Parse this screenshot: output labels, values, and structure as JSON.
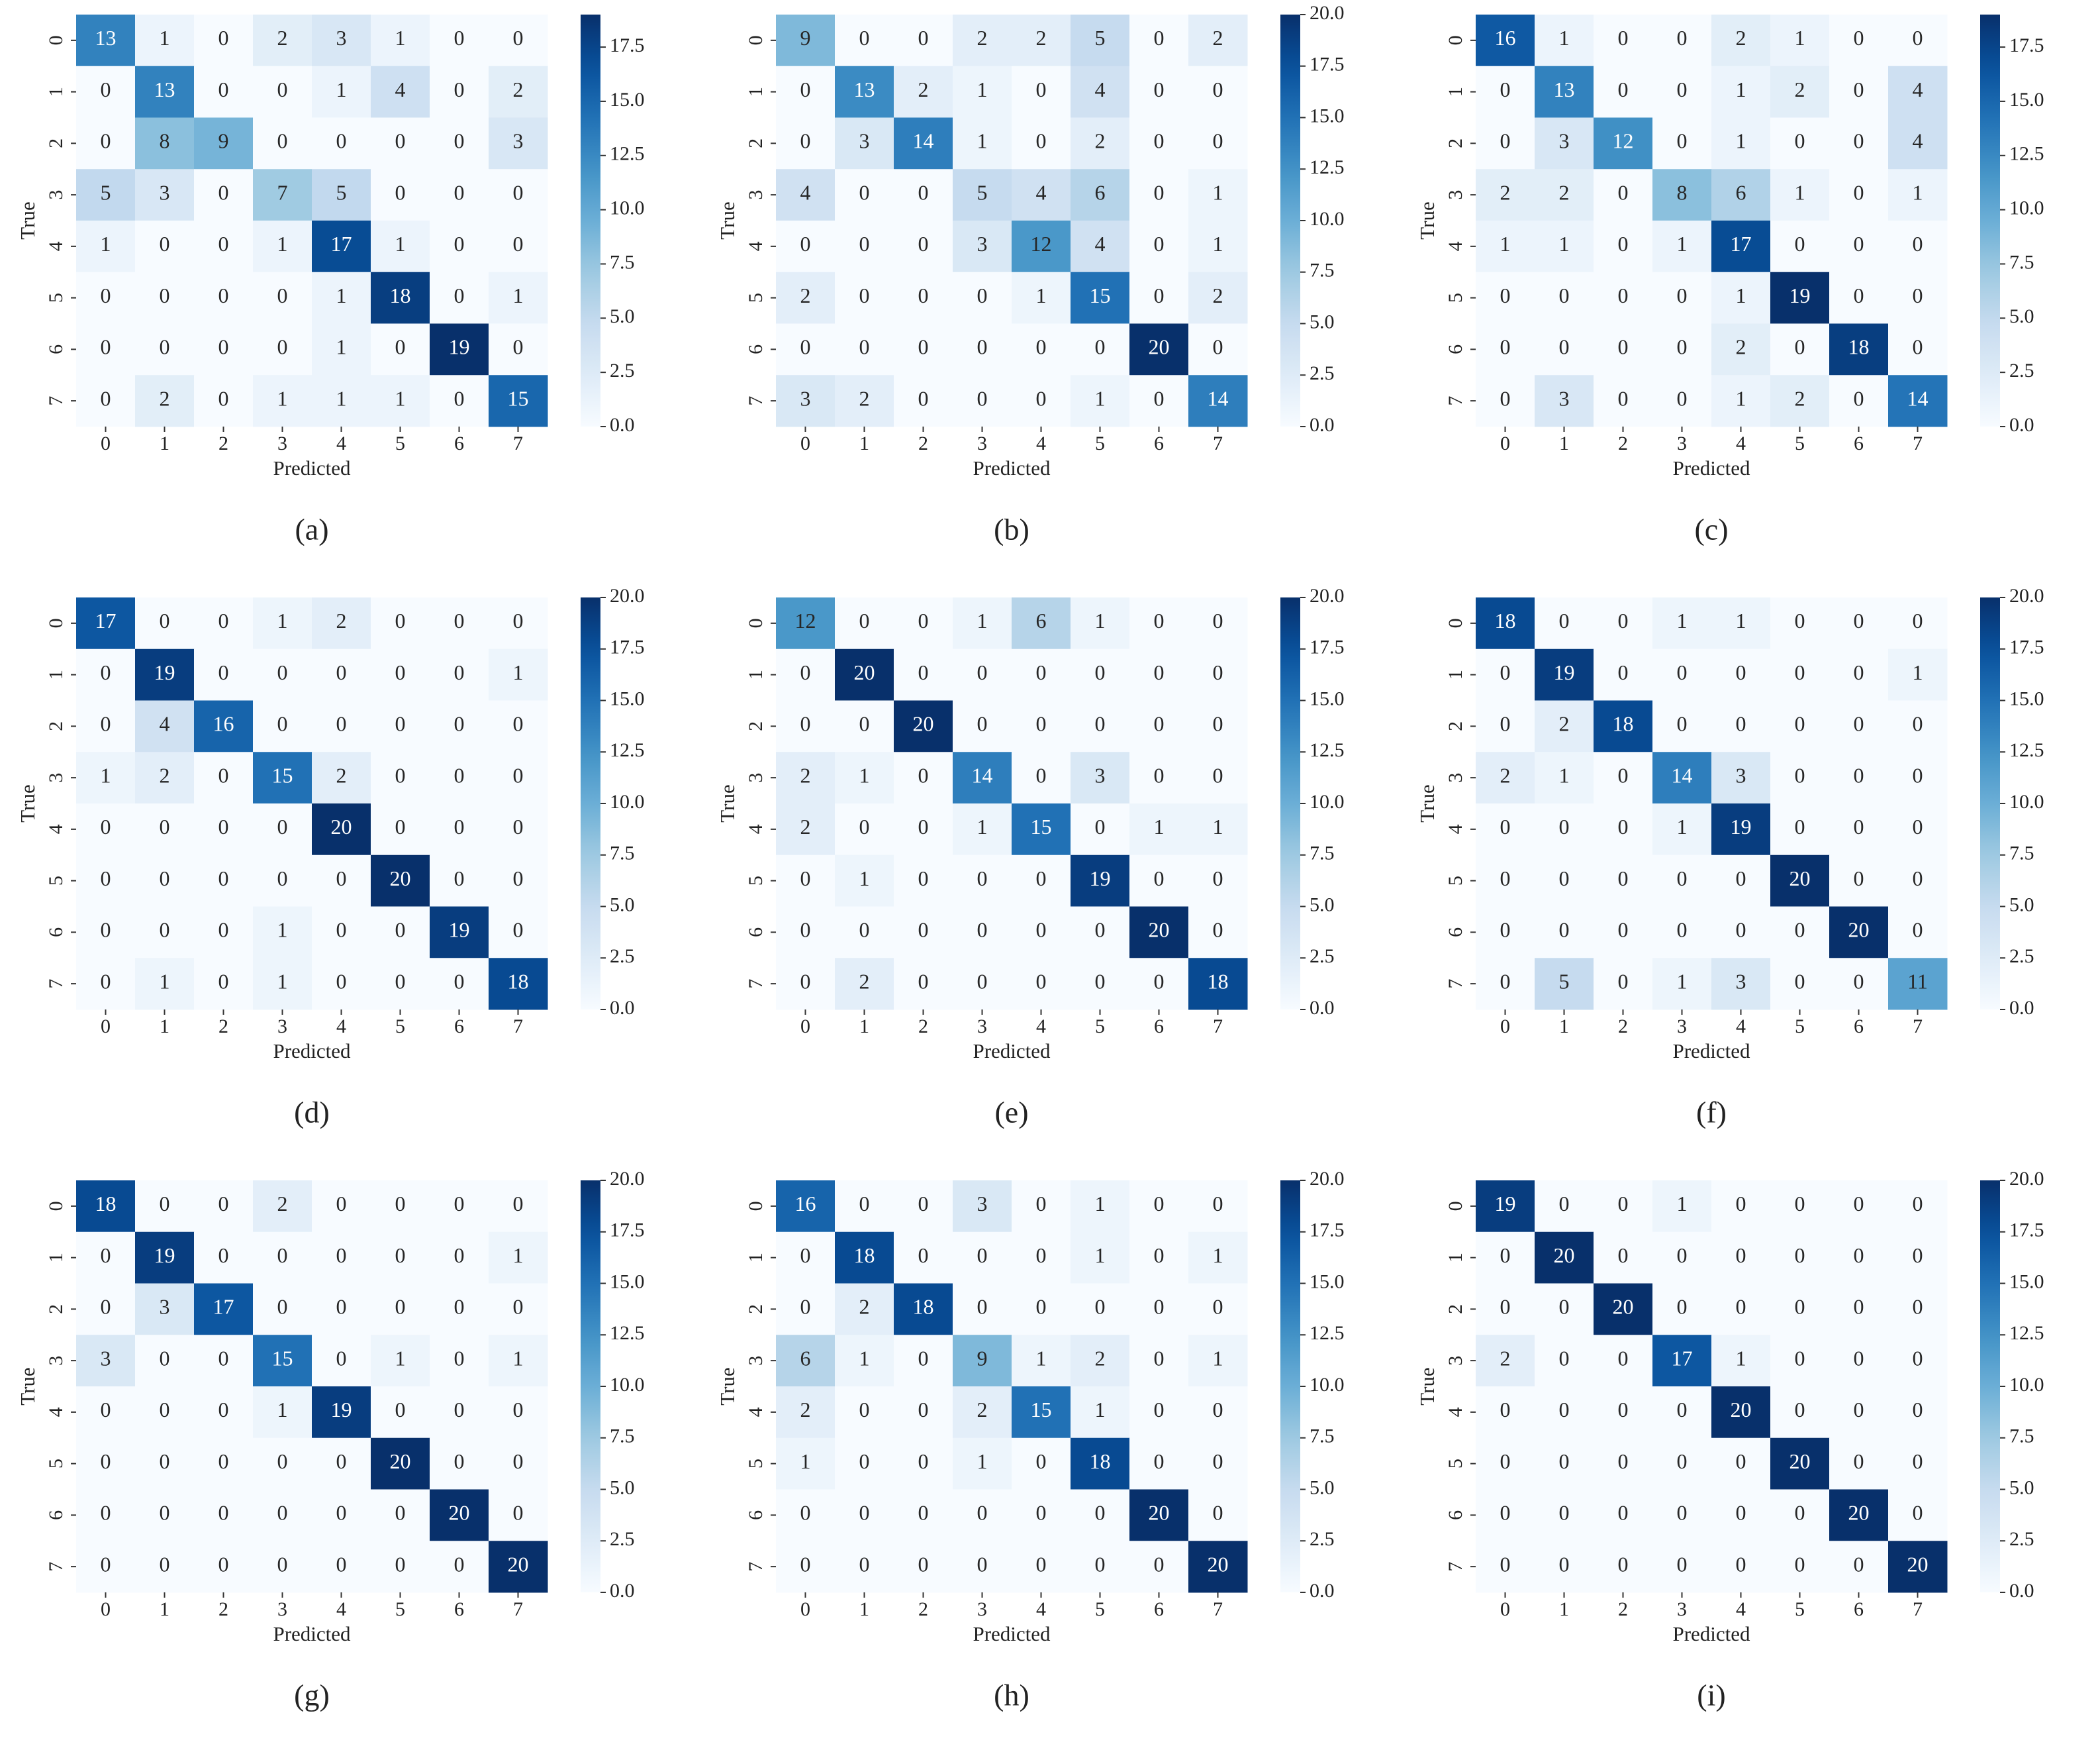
{
  "chart_data": [
    {
      "type": "heatmap",
      "title": "(a)",
      "xlabel": "Predicted",
      "ylabel": "True",
      "categories": [
        "0",
        "1",
        "2",
        "3",
        "4",
        "5",
        "6",
        "7"
      ],
      "colormap": "Blues",
      "zlim": [
        0,
        19
      ],
      "zticks": [
        {
          "value": 0,
          "label": "0.0"
        },
        {
          "value": 2.5,
          "label": "2.5"
        },
        {
          "value": 5,
          "label": "5.0"
        },
        {
          "value": 7.5,
          "label": "7.5"
        },
        {
          "value": 10,
          "label": "10.0"
        },
        {
          "value": 12.5,
          "label": "12.5"
        },
        {
          "value": 15,
          "label": "15.0"
        },
        {
          "value": 17.5,
          "label": "17.5"
        }
      ],
      "values": [
        [
          13,
          1,
          0,
          2,
          3,
          1,
          0,
          0
        ],
        [
          0,
          13,
          0,
          0,
          1,
          4,
          0,
          2
        ],
        [
          0,
          8,
          9,
          0,
          0,
          0,
          0,
          3
        ],
        [
          5,
          3,
          0,
          7,
          5,
          0,
          0,
          0
        ],
        [
          1,
          0,
          0,
          1,
          17,
          1,
          0,
          0
        ],
        [
          0,
          0,
          0,
          0,
          1,
          18,
          0,
          1
        ],
        [
          0,
          0,
          0,
          0,
          1,
          0,
          19,
          0
        ],
        [
          0,
          2,
          0,
          1,
          1,
          1,
          0,
          15
        ]
      ]
    },
    {
      "type": "heatmap",
      "title": "(b)",
      "xlabel": "Predicted",
      "ylabel": "True",
      "categories": [
        "0",
        "1",
        "2",
        "3",
        "4",
        "5",
        "6",
        "7"
      ],
      "colormap": "Blues",
      "zlim": [
        0,
        20
      ],
      "zticks": [
        {
          "value": 0,
          "label": "0.0"
        },
        {
          "value": 2.5,
          "label": "2.5"
        },
        {
          "value": 5,
          "label": "5.0"
        },
        {
          "value": 7.5,
          "label": "7.5"
        },
        {
          "value": 10,
          "label": "10.0"
        },
        {
          "value": 12.5,
          "label": "12.5"
        },
        {
          "value": 15,
          "label": "15.0"
        },
        {
          "value": 17.5,
          "label": "17.5"
        },
        {
          "value": 20,
          "label": "20.0"
        }
      ],
      "values": [
        [
          9,
          0,
          0,
          2,
          2,
          5,
          0,
          2
        ],
        [
          0,
          13,
          2,
          1,
          0,
          4,
          0,
          0
        ],
        [
          0,
          3,
          14,
          1,
          0,
          2,
          0,
          0
        ],
        [
          4,
          0,
          0,
          5,
          4,
          6,
          0,
          1
        ],
        [
          0,
          0,
          0,
          3,
          12,
          4,
          0,
          1
        ],
        [
          2,
          0,
          0,
          0,
          1,
          15,
          0,
          2
        ],
        [
          0,
          0,
          0,
          0,
          0,
          0,
          20,
          0
        ],
        [
          3,
          2,
          0,
          0,
          0,
          1,
          0,
          14
        ]
      ]
    },
    {
      "type": "heatmap",
      "title": "(c)",
      "xlabel": "Predicted",
      "ylabel": "True",
      "categories": [
        "0",
        "1",
        "2",
        "3",
        "4",
        "5",
        "6",
        "7"
      ],
      "colormap": "Blues",
      "zlim": [
        0,
        19
      ],
      "zticks": [
        {
          "value": 0,
          "label": "0.0"
        },
        {
          "value": 2.5,
          "label": "2.5"
        },
        {
          "value": 5,
          "label": "5.0"
        },
        {
          "value": 7.5,
          "label": "7.5"
        },
        {
          "value": 10,
          "label": "10.0"
        },
        {
          "value": 12.5,
          "label": "12.5"
        },
        {
          "value": 15,
          "label": "15.0"
        },
        {
          "value": 17.5,
          "label": "17.5"
        }
      ],
      "values": [
        [
          16,
          1,
          0,
          0,
          2,
          1,
          0,
          0
        ],
        [
          0,
          13,
          0,
          0,
          1,
          2,
          0,
          4
        ],
        [
          0,
          3,
          12,
          0,
          1,
          0,
          0,
          4
        ],
        [
          2,
          2,
          0,
          8,
          6,
          1,
          0,
          1
        ],
        [
          1,
          1,
          0,
          1,
          17,
          0,
          0,
          0
        ],
        [
          0,
          0,
          0,
          0,
          1,
          19,
          0,
          0
        ],
        [
          0,
          0,
          0,
          0,
          2,
          0,
          18,
          0
        ],
        [
          0,
          3,
          0,
          0,
          1,
          2,
          0,
          14
        ]
      ]
    },
    {
      "type": "heatmap",
      "title": "(d)",
      "xlabel": "Predicted",
      "ylabel": "True",
      "categories": [
        "0",
        "1",
        "2",
        "3",
        "4",
        "5",
        "6",
        "7"
      ],
      "colormap": "Blues",
      "zlim": [
        0,
        20
      ],
      "zticks": [
        {
          "value": 0,
          "label": "0.0"
        },
        {
          "value": 2.5,
          "label": "2.5"
        },
        {
          "value": 5,
          "label": "5.0"
        },
        {
          "value": 7.5,
          "label": "7.5"
        },
        {
          "value": 10,
          "label": "10.0"
        },
        {
          "value": 12.5,
          "label": "12.5"
        },
        {
          "value": 15,
          "label": "15.0"
        },
        {
          "value": 17.5,
          "label": "17.5"
        },
        {
          "value": 20,
          "label": "20.0"
        }
      ],
      "values": [
        [
          17,
          0,
          0,
          1,
          2,
          0,
          0,
          0
        ],
        [
          0,
          19,
          0,
          0,
          0,
          0,
          0,
          1
        ],
        [
          0,
          4,
          16,
          0,
          0,
          0,
          0,
          0
        ],
        [
          1,
          2,
          0,
          15,
          2,
          0,
          0,
          0
        ],
        [
          0,
          0,
          0,
          0,
          20,
          0,
          0,
          0
        ],
        [
          0,
          0,
          0,
          0,
          0,
          20,
          0,
          0
        ],
        [
          0,
          0,
          0,
          1,
          0,
          0,
          19,
          0
        ],
        [
          0,
          1,
          0,
          1,
          0,
          0,
          0,
          18
        ]
      ]
    },
    {
      "type": "heatmap",
      "title": "(e)",
      "xlabel": "Predicted",
      "ylabel": "True",
      "categories": [
        "0",
        "1",
        "2",
        "3",
        "4",
        "5",
        "6",
        "7"
      ],
      "colormap": "Blues",
      "zlim": [
        0,
        20
      ],
      "zticks": [
        {
          "value": 0,
          "label": "0.0"
        },
        {
          "value": 2.5,
          "label": "2.5"
        },
        {
          "value": 5,
          "label": "5.0"
        },
        {
          "value": 7.5,
          "label": "7.5"
        },
        {
          "value": 10,
          "label": "10.0"
        },
        {
          "value": 12.5,
          "label": "12.5"
        },
        {
          "value": 15,
          "label": "15.0"
        },
        {
          "value": 17.5,
          "label": "17.5"
        },
        {
          "value": 20,
          "label": "20.0"
        }
      ],
      "values": [
        [
          12,
          0,
          0,
          1,
          6,
          1,
          0,
          0
        ],
        [
          0,
          20,
          0,
          0,
          0,
          0,
          0,
          0
        ],
        [
          0,
          0,
          20,
          0,
          0,
          0,
          0,
          0
        ],
        [
          2,
          1,
          0,
          14,
          0,
          3,
          0,
          0
        ],
        [
          2,
          0,
          0,
          1,
          15,
          0,
          1,
          1
        ],
        [
          0,
          1,
          0,
          0,
          0,
          19,
          0,
          0
        ],
        [
          0,
          0,
          0,
          0,
          0,
          0,
          20,
          0
        ],
        [
          0,
          2,
          0,
          0,
          0,
          0,
          0,
          18
        ]
      ]
    },
    {
      "type": "heatmap",
      "title": "(f)",
      "xlabel": "Predicted",
      "ylabel": "True",
      "categories": [
        "0",
        "1",
        "2",
        "3",
        "4",
        "5",
        "6",
        "7"
      ],
      "colormap": "Blues",
      "zlim": [
        0,
        20
      ],
      "zticks": [
        {
          "value": 0,
          "label": "0.0"
        },
        {
          "value": 2.5,
          "label": "2.5"
        },
        {
          "value": 5,
          "label": "5.0"
        },
        {
          "value": 7.5,
          "label": "7.5"
        },
        {
          "value": 10,
          "label": "10.0"
        },
        {
          "value": 12.5,
          "label": "12.5"
        },
        {
          "value": 15,
          "label": "15.0"
        },
        {
          "value": 17.5,
          "label": "17.5"
        },
        {
          "value": 20,
          "label": "20.0"
        }
      ],
      "values": [
        [
          18,
          0,
          0,
          1,
          1,
          0,
          0,
          0
        ],
        [
          0,
          19,
          0,
          0,
          0,
          0,
          0,
          1
        ],
        [
          0,
          2,
          18,
          0,
          0,
          0,
          0,
          0
        ],
        [
          2,
          1,
          0,
          14,
          3,
          0,
          0,
          0
        ],
        [
          0,
          0,
          0,
          1,
          19,
          0,
          0,
          0
        ],
        [
          0,
          0,
          0,
          0,
          0,
          20,
          0,
          0
        ],
        [
          0,
          0,
          0,
          0,
          0,
          0,
          20,
          0
        ],
        [
          0,
          5,
          0,
          1,
          3,
          0,
          0,
          11
        ]
      ]
    },
    {
      "type": "heatmap",
      "title": "(g)",
      "xlabel": "Predicted",
      "ylabel": "True",
      "categories": [
        "0",
        "1",
        "2",
        "3",
        "4",
        "5",
        "6",
        "7"
      ],
      "colormap": "Blues",
      "zlim": [
        0,
        20
      ],
      "zticks": [
        {
          "value": 0,
          "label": "0.0"
        },
        {
          "value": 2.5,
          "label": "2.5"
        },
        {
          "value": 5,
          "label": "5.0"
        },
        {
          "value": 7.5,
          "label": "7.5"
        },
        {
          "value": 10,
          "label": "10.0"
        },
        {
          "value": 12.5,
          "label": "12.5"
        },
        {
          "value": 15,
          "label": "15.0"
        },
        {
          "value": 17.5,
          "label": "17.5"
        },
        {
          "value": 20,
          "label": "20.0"
        }
      ],
      "values": [
        [
          18,
          0,
          0,
          2,
          0,
          0,
          0,
          0
        ],
        [
          0,
          19,
          0,
          0,
          0,
          0,
          0,
          1
        ],
        [
          0,
          3,
          17,
          0,
          0,
          0,
          0,
          0
        ],
        [
          3,
          0,
          0,
          15,
          0,
          1,
          0,
          1
        ],
        [
          0,
          0,
          0,
          1,
          19,
          0,
          0,
          0
        ],
        [
          0,
          0,
          0,
          0,
          0,
          20,
          0,
          0
        ],
        [
          0,
          0,
          0,
          0,
          0,
          0,
          20,
          0
        ],
        [
          0,
          0,
          0,
          0,
          0,
          0,
          0,
          20
        ]
      ]
    },
    {
      "type": "heatmap",
      "title": "(h)",
      "xlabel": "Predicted",
      "ylabel": "True",
      "categories": [
        "0",
        "1",
        "2",
        "3",
        "4",
        "5",
        "6",
        "7"
      ],
      "colormap": "Blues",
      "zlim": [
        0,
        20
      ],
      "zticks": [
        {
          "value": 0,
          "label": "0.0"
        },
        {
          "value": 2.5,
          "label": "2.5"
        },
        {
          "value": 5,
          "label": "5.0"
        },
        {
          "value": 7.5,
          "label": "7.5"
        },
        {
          "value": 10,
          "label": "10.0"
        },
        {
          "value": 12.5,
          "label": "12.5"
        },
        {
          "value": 15,
          "label": "15.0"
        },
        {
          "value": 17.5,
          "label": "17.5"
        },
        {
          "value": 20,
          "label": "20.0"
        }
      ],
      "values": [
        [
          16,
          0,
          0,
          3,
          0,
          1,
          0,
          0
        ],
        [
          0,
          18,
          0,
          0,
          0,
          1,
          0,
          1
        ],
        [
          0,
          2,
          18,
          0,
          0,
          0,
          0,
          0
        ],
        [
          6,
          1,
          0,
          9,
          1,
          2,
          0,
          1
        ],
        [
          2,
          0,
          0,
          2,
          15,
          1,
          0,
          0
        ],
        [
          1,
          0,
          0,
          1,
          0,
          18,
          0,
          0
        ],
        [
          0,
          0,
          0,
          0,
          0,
          0,
          20,
          0
        ],
        [
          0,
          0,
          0,
          0,
          0,
          0,
          0,
          20
        ]
      ]
    },
    {
      "type": "heatmap",
      "title": "(i)",
      "xlabel": "Predicted",
      "ylabel": "True",
      "categories": [
        "0",
        "1",
        "2",
        "3",
        "4",
        "5",
        "6",
        "7"
      ],
      "colormap": "Blues",
      "zlim": [
        0,
        20
      ],
      "zticks": [
        {
          "value": 0,
          "label": "0.0"
        },
        {
          "value": 2.5,
          "label": "2.5"
        },
        {
          "value": 5,
          "label": "5.0"
        },
        {
          "value": 7.5,
          "label": "7.5"
        },
        {
          "value": 10,
          "label": "10.0"
        },
        {
          "value": 12.5,
          "label": "12.5"
        },
        {
          "value": 15,
          "label": "15.0"
        },
        {
          "value": 17.5,
          "label": "17.5"
        },
        {
          "value": 20,
          "label": "20.0"
        }
      ],
      "values": [
        [
          19,
          0,
          0,
          1,
          0,
          0,
          0,
          0
        ],
        [
          0,
          20,
          0,
          0,
          0,
          0,
          0,
          0
        ],
        [
          0,
          0,
          20,
          0,
          0,
          0,
          0,
          0
        ],
        [
          2,
          0,
          0,
          17,
          1,
          0,
          0,
          0
        ],
        [
          0,
          0,
          0,
          0,
          20,
          0,
          0,
          0
        ],
        [
          0,
          0,
          0,
          0,
          0,
          20,
          0,
          0
        ],
        [
          0,
          0,
          0,
          0,
          0,
          0,
          20,
          0
        ],
        [
          0,
          0,
          0,
          0,
          0,
          0,
          0,
          20
        ]
      ]
    }
  ]
}
